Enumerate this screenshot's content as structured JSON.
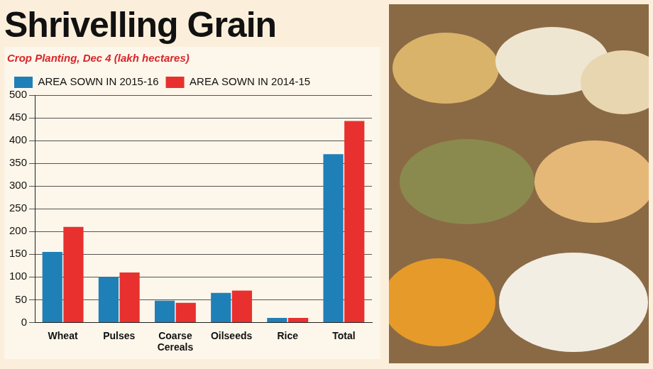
{
  "chart_data": {
    "type": "bar",
    "title": "Shrivelling Grain",
    "subtitle": "Crop Planting, Dec 4 (lakh hectares)",
    "categories": [
      "Wheat",
      "Pulses",
      "Coarse Cereals",
      "Oilseeds",
      "Rice",
      "Total"
    ],
    "series": [
      {
        "name": "AREA SOWN IN 2015-16",
        "color": "#1f80b8",
        "values": [
          155,
          100,
          48,
          65,
          10,
          370
        ]
      },
      {
        "name": "AREA SOWN IN 2014-15",
        "color": "#e8302e",
        "values": [
          210,
          110,
          43,
          70,
          10,
          443
        ]
      }
    ],
    "ylim": [
      0,
      500
    ],
    "yticks": [
      0,
      50,
      100,
      150,
      200,
      250,
      300,
      350,
      400,
      450,
      500
    ],
    "grid": true,
    "legend": "top-left"
  }
}
